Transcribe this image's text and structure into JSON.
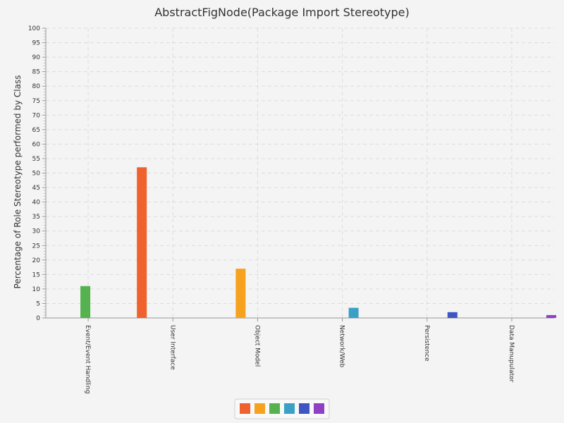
{
  "chart_data": {
    "type": "bar",
    "title": "AbstractFigNode(Package Import Stereotype)",
    "xlabel": "",
    "ylabel": "Percentage of Role Stereotype performed by Class",
    "ylim": [
      0,
      100
    ],
    "ytick_step": 5,
    "grid": true,
    "legend": "bottom-center",
    "categories": [
      "Event/Event Handling",
      "User Interface",
      "Object Model",
      "Network/Web",
      "Persistence",
      "Data Manupulator"
    ],
    "series": [
      {
        "color": "#f0622d",
        "values": [
          0,
          52,
          0,
          0,
          0,
          0
        ]
      },
      {
        "color": "#f6a21e",
        "values": [
          0,
          0,
          17,
          0,
          0,
          0
        ]
      },
      {
        "color": "#55b24f",
        "values": [
          11,
          0,
          0,
          0,
          0,
          0
        ]
      },
      {
        "color": "#3ba0c5",
        "values": [
          0,
          0,
          0,
          3.5,
          0,
          0
        ]
      },
      {
        "color": "#3f55c2",
        "values": [
          0,
          0,
          0,
          0,
          2,
          0
        ]
      },
      {
        "color": "#9040c4",
        "values": [
          0,
          0,
          0,
          0,
          0,
          1
        ]
      }
    ]
  }
}
